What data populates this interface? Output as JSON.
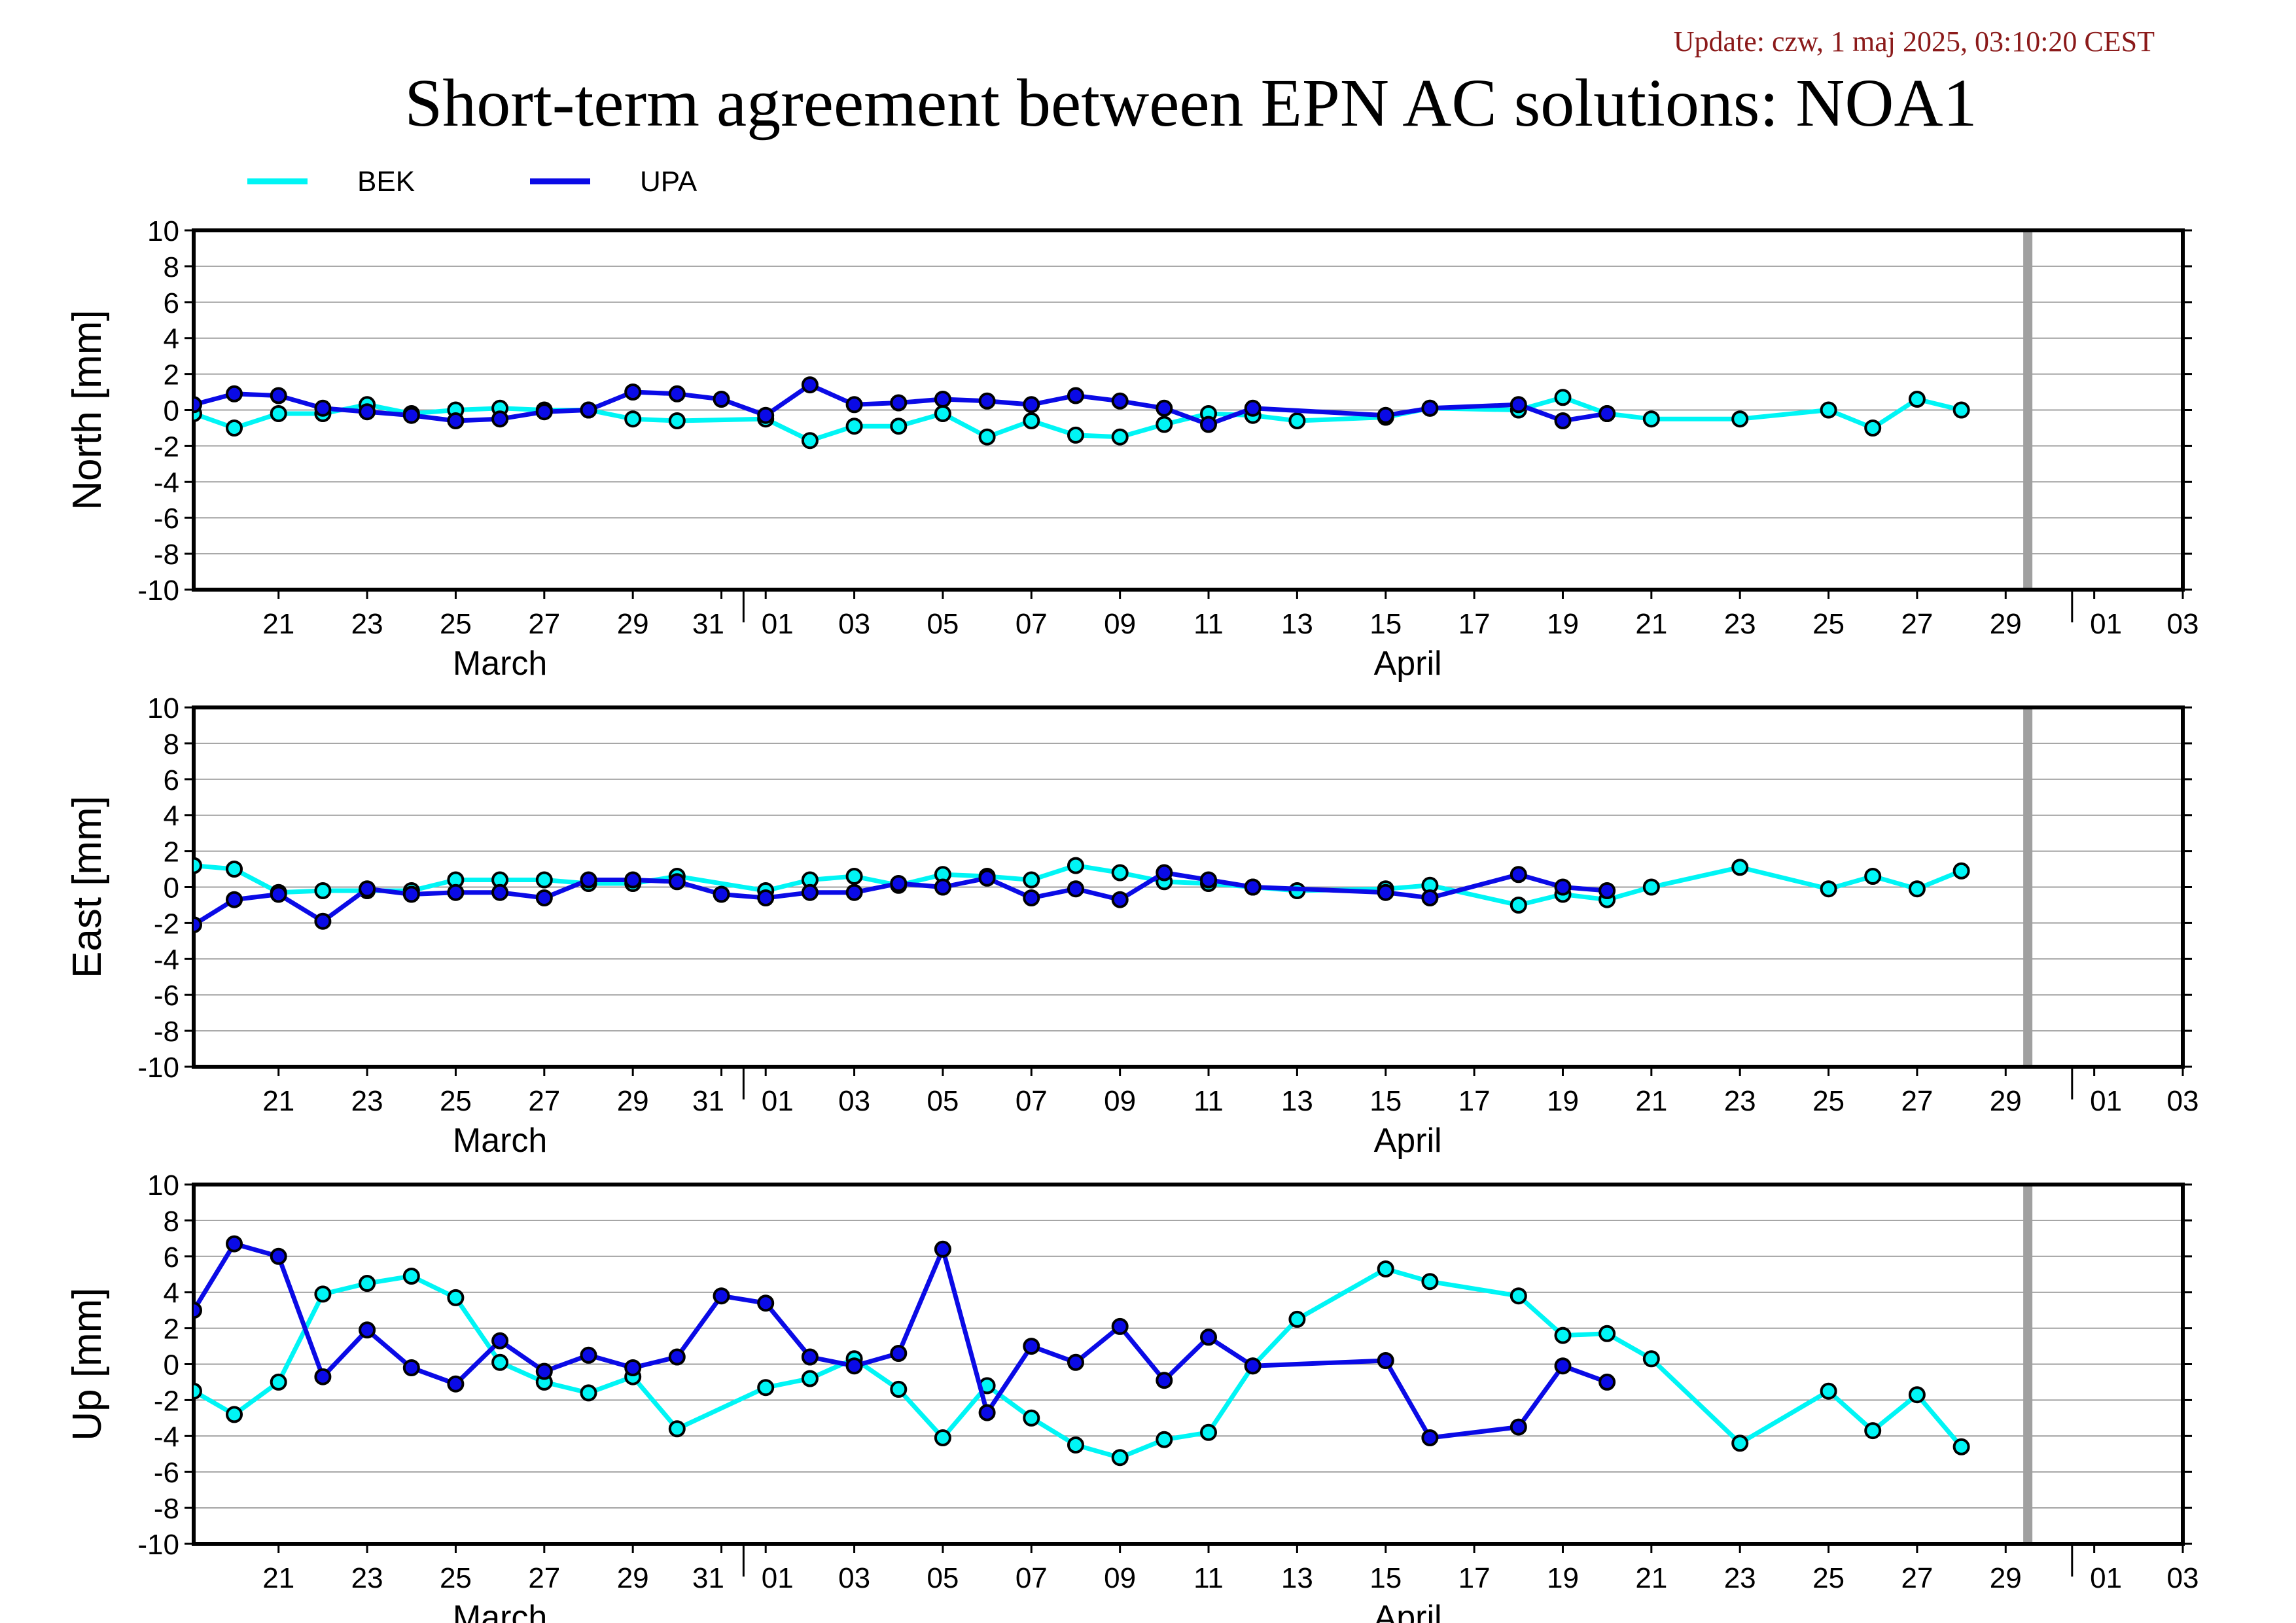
{
  "update": "Update: czw, 1 maj 2025, 03:10:20 CEST",
  "title": "Short-term agreement between EPN AC solutions: NOA1",
  "colors": {
    "BEK": "#00f5f5",
    "UPA": "#0a0ae6",
    "grid": "#a0a0a0",
    "current_day_marker": "#a0a0a0"
  },
  "legend": [
    {
      "name": "BEK",
      "color": "#00f5f5"
    },
    {
      "name": "UPA",
      "color": "#0a0ae6"
    }
  ],
  "chart_data": {
    "type": "line",
    "x_axis": {
      "range_start": "2025-03-19T14:00",
      "range_end": "2025-05-03T12:00",
      "tick_labels": [
        "21",
        "23",
        "25",
        "27",
        "29",
        "31",
        "01",
        "03",
        "05",
        "07",
        "09",
        "11",
        "13",
        "15",
        "17",
        "19",
        "21",
        "23",
        "25",
        "27",
        "29",
        "01",
        "03"
      ],
      "month_labels": [
        "March",
        "April"
      ],
      "month_boundaries": [
        "2025-04-01",
        "2025-05-01"
      ],
      "current_day_marker": "2025-04-30"
    },
    "panels": [
      {
        "ylabel": "North [mm]",
        "ylim": [
          -10,
          10
        ],
        "yticks": [
          "10",
          "8",
          "6",
          "4",
          "2",
          "0",
          "-2",
          "-4",
          "-6",
          "-8",
          "-10"
        ],
        "series": [
          {
            "name": "BEK",
            "points": [
              [
                "2025-03-19T14:00",
                -0.2
              ],
              [
                "2025-03-20",
                -1.0
              ],
              [
                "2025-03-21",
                -0.2
              ],
              [
                "2025-03-22",
                -0.2
              ],
              [
                "2025-03-23",
                0.3
              ],
              [
                "2025-03-24",
                -0.2
              ],
              [
                "2025-03-25",
                0.0
              ],
              [
                "2025-03-26",
                0.1
              ],
              [
                "2025-03-27",
                0.0
              ],
              [
                "2025-03-28",
                0.0
              ],
              [
                "2025-03-29",
                -0.5
              ],
              [
                "2025-03-30",
                -0.6
              ],
              [
                "2025-04-01",
                -0.5
              ],
              [
                "2025-04-02",
                -1.7
              ],
              [
                "2025-04-03",
                -0.9
              ],
              [
                "2025-04-04",
                -0.9
              ],
              [
                "2025-04-05",
                -0.2
              ],
              [
                "2025-04-06",
                -1.5
              ],
              [
                "2025-04-07",
                -0.6
              ],
              [
                "2025-04-08",
                -1.4
              ],
              [
                "2025-04-09",
                -1.5
              ],
              [
                "2025-04-10",
                -0.8
              ],
              [
                "2025-04-11",
                -0.2
              ],
              [
                "2025-04-12",
                -0.3
              ],
              [
                "2025-04-13",
                -0.6
              ],
              [
                "2025-04-15",
                -0.4
              ],
              [
                "2025-04-16",
                0.1
              ],
              [
                "2025-04-18",
                0.0
              ],
              [
                "2025-04-19",
                0.7
              ],
              [
                "2025-04-20",
                -0.2
              ],
              [
                "2025-04-21",
                -0.5
              ],
              [
                "2025-04-23",
                -0.5
              ],
              [
                "2025-04-25",
                0.0
              ],
              [
                "2025-04-26",
                -1.0
              ],
              [
                "2025-04-27",
                0.6
              ],
              [
                "2025-04-28",
                0.0
              ]
            ]
          },
          {
            "name": "UPA",
            "points": [
              [
                "2025-03-19T14:00",
                0.3
              ],
              [
                "2025-03-20",
                0.9
              ],
              [
                "2025-03-21",
                0.8
              ],
              [
                "2025-03-22",
                0.1
              ],
              [
                "2025-03-23",
                -0.1
              ],
              [
                "2025-03-24",
                -0.3
              ],
              [
                "2025-03-25",
                -0.6
              ],
              [
                "2025-03-26",
                -0.5
              ],
              [
                "2025-03-27",
                -0.1
              ],
              [
                "2025-03-28",
                0.0
              ],
              [
                "2025-03-29",
                1.0
              ],
              [
                "2025-03-30",
                0.9
              ],
              [
                "2025-03-31",
                0.6
              ],
              [
                "2025-04-01",
                -0.3
              ],
              [
                "2025-04-02",
                1.4
              ],
              [
                "2025-04-03",
                0.3
              ],
              [
                "2025-04-04",
                0.4
              ],
              [
                "2025-04-05",
                0.6
              ],
              [
                "2025-04-06",
                0.5
              ],
              [
                "2025-04-07",
                0.3
              ],
              [
                "2025-04-08",
                0.8
              ],
              [
                "2025-04-09",
                0.5
              ],
              [
                "2025-04-10",
                0.1
              ],
              [
                "2025-04-11",
                -0.8
              ],
              [
                "2025-04-12",
                0.1
              ],
              [
                "2025-04-15",
                -0.3
              ],
              [
                "2025-04-16",
                0.1
              ],
              [
                "2025-04-18",
                0.3
              ],
              [
                "2025-04-19",
                -0.6
              ],
              [
                "2025-04-20",
                -0.2
              ]
            ]
          }
        ]
      },
      {
        "ylabel": "East [mm]",
        "ylim": [
          -10,
          10
        ],
        "yticks": [
          "10",
          "8",
          "6",
          "4",
          "2",
          "0",
          "-2",
          "-4",
          "-6",
          "-8",
          "-10"
        ],
        "series": [
          {
            "name": "BEK",
            "points": [
              [
                "2025-03-19T14:00",
                1.2
              ],
              [
                "2025-03-20",
                1.0
              ],
              [
                "2025-03-21",
                -0.3
              ],
              [
                "2025-03-22",
                -0.2
              ],
              [
                "2025-03-23",
                -0.2
              ],
              [
                "2025-03-24",
                -0.2
              ],
              [
                "2025-03-25",
                0.4
              ],
              [
                "2025-03-26",
                0.4
              ],
              [
                "2025-03-27",
                0.4
              ],
              [
                "2025-03-28",
                0.2
              ],
              [
                "2025-03-29",
                0.2
              ],
              [
                "2025-03-30",
                0.6
              ],
              [
                "2025-04-01",
                -0.2
              ],
              [
                "2025-04-02",
                0.4
              ],
              [
                "2025-04-03",
                0.6
              ],
              [
                "2025-04-04",
                0.1
              ],
              [
                "2025-04-05",
                0.7
              ],
              [
                "2025-04-06",
                0.6
              ],
              [
                "2025-04-07",
                0.4
              ],
              [
                "2025-04-08",
                1.2
              ],
              [
                "2025-04-09",
                0.8
              ],
              [
                "2025-04-10",
                0.3
              ],
              [
                "2025-04-11",
                0.2
              ],
              [
                "2025-04-12",
                0.0
              ],
              [
                "2025-04-13",
                -0.2
              ],
              [
                "2025-04-15",
                -0.1
              ],
              [
                "2025-04-16",
                0.1
              ],
              [
                "2025-04-18",
                -1.0
              ],
              [
                "2025-04-19",
                -0.4
              ],
              [
                "2025-04-20",
                -0.7
              ],
              [
                "2025-04-21",
                0.0
              ],
              [
                "2025-04-23",
                1.1
              ],
              [
                "2025-04-25",
                -0.1
              ],
              [
                "2025-04-26",
                0.6
              ],
              [
                "2025-04-27",
                -0.1
              ],
              [
                "2025-04-28",
                0.9
              ]
            ]
          },
          {
            "name": "UPA",
            "points": [
              [
                "2025-03-19T14:00",
                -2.1
              ],
              [
                "2025-03-20",
                -0.7
              ],
              [
                "2025-03-21",
                -0.4
              ],
              [
                "2025-03-22",
                -1.9
              ],
              [
                "2025-03-23",
                -0.1
              ],
              [
                "2025-03-24",
                -0.4
              ],
              [
                "2025-03-25",
                -0.3
              ],
              [
                "2025-03-26",
                -0.3
              ],
              [
                "2025-03-27",
                -0.6
              ],
              [
                "2025-03-28",
                0.4
              ],
              [
                "2025-03-29",
                0.4
              ],
              [
                "2025-03-30",
                0.3
              ],
              [
                "2025-03-31",
                -0.4
              ],
              [
                "2025-04-01",
                -0.6
              ],
              [
                "2025-04-02",
                -0.3
              ],
              [
                "2025-04-03",
                -0.3
              ],
              [
                "2025-04-04",
                0.2
              ],
              [
                "2025-04-05",
                0.0
              ],
              [
                "2025-04-06",
                0.5
              ],
              [
                "2025-04-07",
                -0.6
              ],
              [
                "2025-04-08",
                -0.1
              ],
              [
                "2025-04-09",
                -0.7
              ],
              [
                "2025-04-10",
                0.8
              ],
              [
                "2025-04-11",
                0.4
              ],
              [
                "2025-04-12",
                0.0
              ],
              [
                "2025-04-15",
                -0.3
              ],
              [
                "2025-04-16",
                -0.6
              ],
              [
                "2025-04-18",
                0.7
              ],
              [
                "2025-04-19",
                0.0
              ],
              [
                "2025-04-20",
                -0.2
              ]
            ]
          }
        ]
      },
      {
        "ylabel": "Up [mm]",
        "ylim": [
          -10,
          10
        ],
        "yticks": [
          "10",
          "8",
          "6",
          "4",
          "2",
          "0",
          "-2",
          "-4",
          "-6",
          "-8",
          "-10"
        ],
        "series": [
          {
            "name": "BEK",
            "points": [
              [
                "2025-03-19T14:00",
                -1.5
              ],
              [
                "2025-03-20",
                -2.8
              ],
              [
                "2025-03-21",
                -1.0
              ],
              [
                "2025-03-22",
                3.9
              ],
              [
                "2025-03-23",
                4.5
              ],
              [
                "2025-03-24",
                4.9
              ],
              [
                "2025-03-25",
                3.7
              ],
              [
                "2025-03-26",
                0.1
              ],
              [
                "2025-03-27",
                -1.0
              ],
              [
                "2025-03-28",
                -1.6
              ],
              [
                "2025-03-29",
                -0.7
              ],
              [
                "2025-03-30",
                -3.6
              ],
              [
                "2025-04-01",
                -1.3
              ],
              [
                "2025-04-02",
                -0.8
              ],
              [
                "2025-04-03",
                0.3
              ],
              [
                "2025-04-04",
                -1.4
              ],
              [
                "2025-04-05",
                -4.1
              ],
              [
                "2025-04-06",
                -1.2
              ],
              [
                "2025-04-07",
                -3.0
              ],
              [
                "2025-04-08",
                -4.5
              ],
              [
                "2025-04-09",
                -5.2
              ],
              [
                "2025-04-10",
                -4.2
              ],
              [
                "2025-04-11",
                -3.8
              ],
              [
                "2025-04-12",
                -0.1
              ],
              [
                "2025-04-13",
                2.5
              ],
              [
                "2025-04-15",
                5.3
              ],
              [
                "2025-04-16",
                4.6
              ],
              [
                "2025-04-18",
                3.8
              ],
              [
                "2025-04-19",
                1.6
              ],
              [
                "2025-04-20",
                1.7
              ],
              [
                "2025-04-21",
                0.3
              ],
              [
                "2025-04-23",
                -4.4
              ],
              [
                "2025-04-25",
                -1.5
              ],
              [
                "2025-04-26",
                -3.7
              ],
              [
                "2025-04-27",
                -1.7
              ],
              [
                "2025-04-28",
                -4.6
              ]
            ]
          },
          {
            "name": "UPA",
            "points": [
              [
                "2025-03-19T14:00",
                3.0
              ],
              [
                "2025-03-20",
                6.7
              ],
              [
                "2025-03-21",
                6.0
              ],
              [
                "2025-03-22",
                -0.7
              ],
              [
                "2025-03-23",
                1.9
              ],
              [
                "2025-03-24",
                -0.2
              ],
              [
                "2025-03-25",
                -1.1
              ],
              [
                "2025-03-26",
                1.3
              ],
              [
                "2025-03-27",
                -0.4
              ],
              [
                "2025-03-28",
                0.5
              ],
              [
                "2025-03-29",
                -0.2
              ],
              [
                "2025-03-30",
                0.4
              ],
              [
                "2025-03-31",
                3.8
              ],
              [
                "2025-04-01",
                3.4
              ],
              [
                "2025-04-02",
                0.4
              ],
              [
                "2025-04-03",
                -0.1
              ],
              [
                "2025-04-04",
                0.6
              ],
              [
                "2025-04-05",
                6.4
              ],
              [
                "2025-04-06",
                -2.7
              ],
              [
                "2025-04-07",
                1.0
              ],
              [
                "2025-04-08",
                0.1
              ],
              [
                "2025-04-09",
                2.1
              ],
              [
                "2025-04-10",
                -0.9
              ],
              [
                "2025-04-11",
                1.5
              ],
              [
                "2025-04-12",
                -0.1
              ],
              [
                "2025-04-15",
                0.2
              ],
              [
                "2025-04-16",
                -4.1
              ],
              [
                "2025-04-18",
                -3.5
              ],
              [
                "2025-04-19",
                -0.1
              ],
              [
                "2025-04-20",
                -1.0
              ]
            ]
          }
        ]
      }
    ]
  }
}
